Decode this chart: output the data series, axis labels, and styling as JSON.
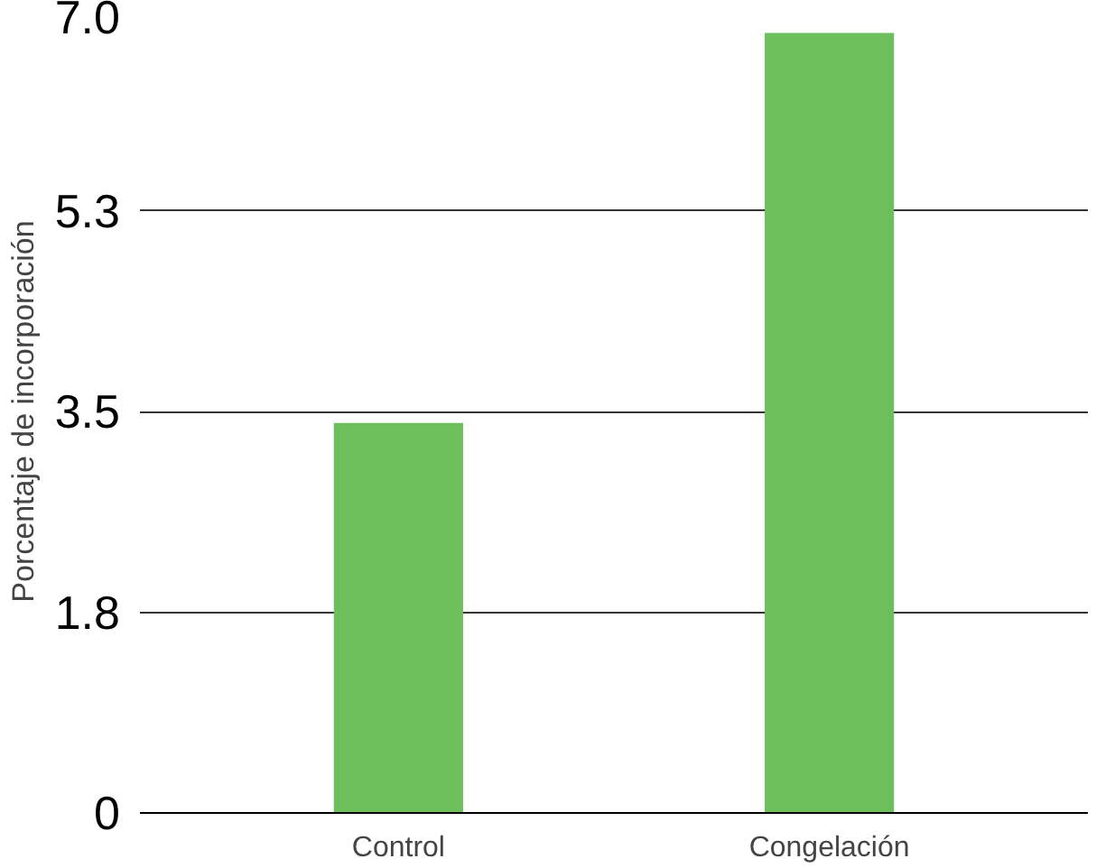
{
  "chart_data": {
    "type": "bar",
    "ylabel": "Porcentaje de incorporación",
    "categories": [
      "Control",
      "Congelación"
    ],
    "values": [
      3.4,
      6.8
    ],
    "color": "#6cbf5a",
    "ylim": [
      0,
      7
    ],
    "yticks": [
      0,
      {
        "value": 1.75,
        "label": "1.8"
      },
      3.5,
      {
        "value": 5.25,
        "label": "5.3"
      },
      {
        "value": 7,
        "label": "7.0"
      }
    ],
    "grid": "y"
  }
}
